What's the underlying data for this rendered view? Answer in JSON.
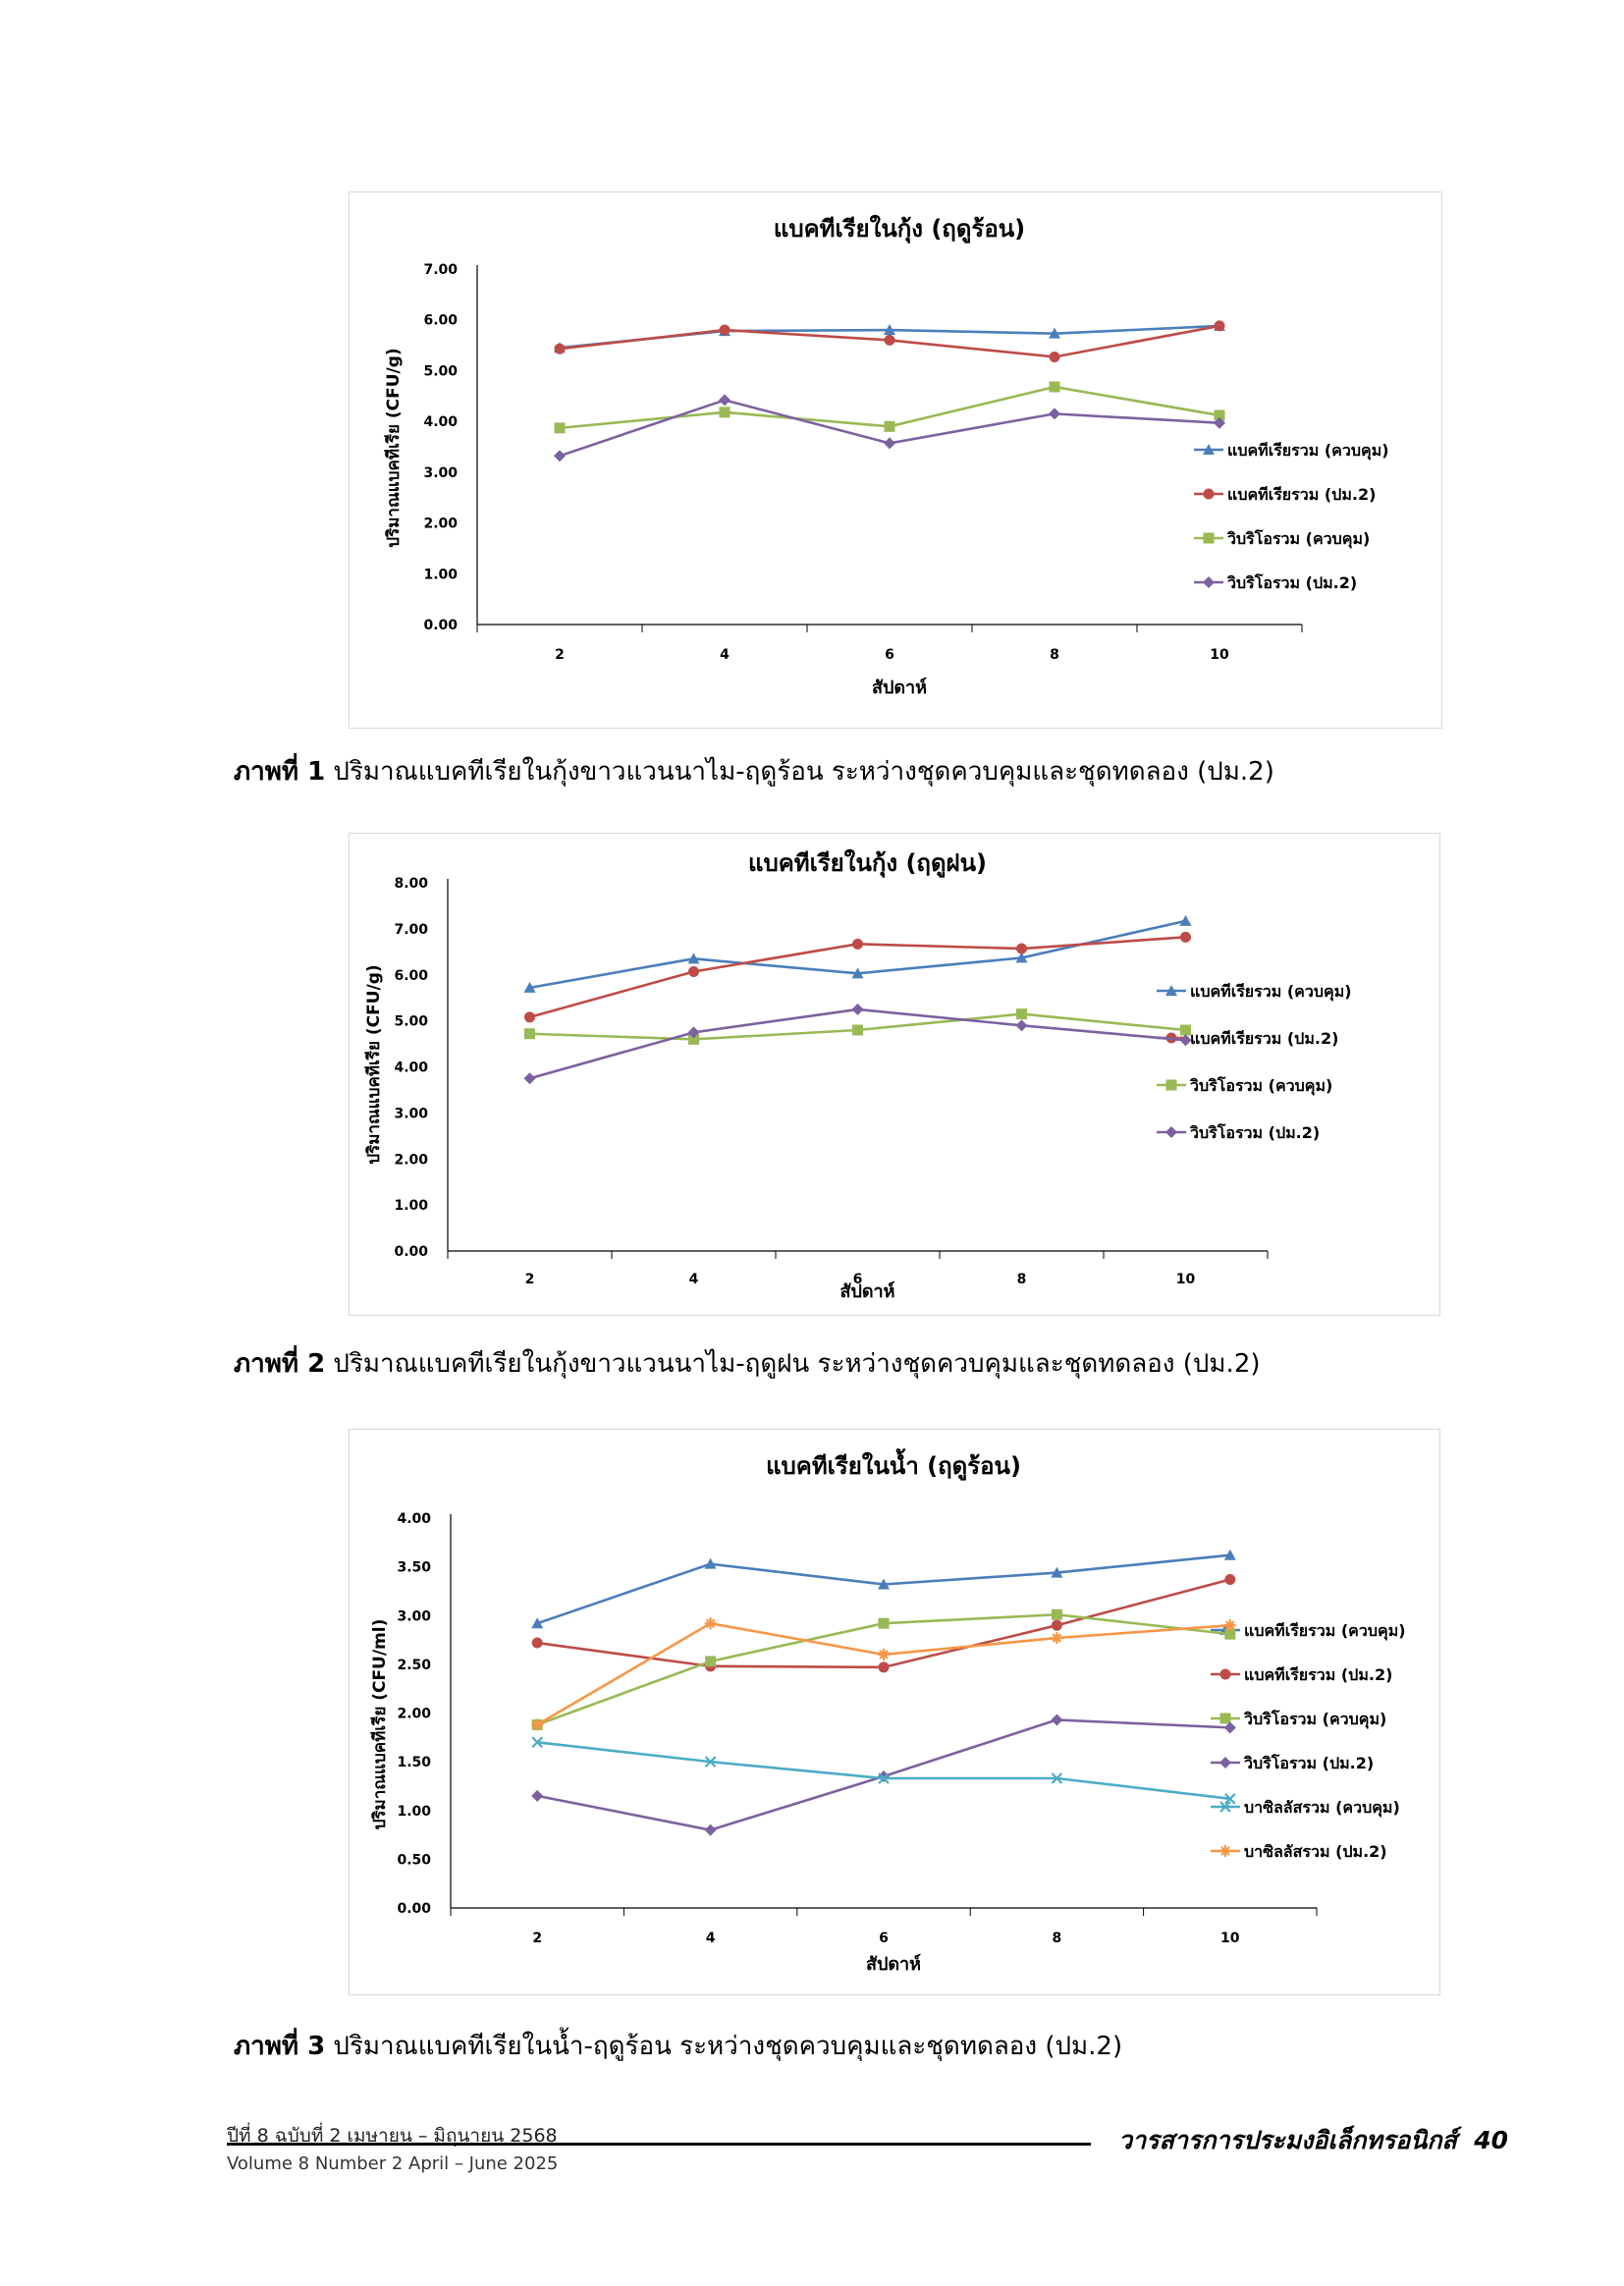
{
  "chart_data": [
    {
      "type": "line",
      "title": "แบคทีเรียในกุ้ง (ฤดูร้อน)",
      "xlabel": "สัปดาห์",
      "ylabel": "ปริมาณแบคทีเรีย (CFU/g)",
      "categories": [
        "2",
        "4",
        "6",
        "8",
        "10"
      ],
      "ylim": [
        0,
        7
      ],
      "yticks": [
        "0.00",
        "1.00",
        "2.00",
        "3.00",
        "4.00",
        "5.00",
        "6.00",
        "7.00"
      ],
      "legend_position": "right",
      "series": [
        {
          "name": "แบคทีเรียรวม (ควบคุม)",
          "color": "#4a7ebb",
          "marker": "triangle",
          "values": [
            5.45,
            5.78,
            5.8,
            5.73,
            5.88
          ]
        },
        {
          "name": "แบคทีเรียรวม (ปม.2)",
          "color": "#be4b48",
          "marker": "circle",
          "values": [
            5.43,
            5.8,
            5.6,
            5.27,
            5.88
          ]
        },
        {
          "name": "วิบริโอรวม (ควบคุม)",
          "color": "#98b954",
          "marker": "square",
          "values": [
            3.87,
            4.18,
            3.9,
            4.68,
            4.12
          ]
        },
        {
          "name": "วิบริโอรวม (ปม.2)",
          "color": "#7d60a0",
          "marker": "diamond",
          "values": [
            3.32,
            4.42,
            3.57,
            4.15,
            3.97
          ]
        }
      ]
    },
    {
      "type": "line",
      "title": "แบคทีเรียในกุ้ง (ฤดูฝน)",
      "xlabel": "สัปดาห์",
      "ylabel": "ปริมาณแบคทีเรีย  (CFU/g)",
      "categories": [
        "2",
        "4",
        "6",
        "8",
        "10"
      ],
      "ylim": [
        0,
        8
      ],
      "yticks": [
        "0.00",
        "1.00",
        "2.00",
        "3.00",
        "4.00",
        "5.00",
        "6.00",
        "7.00",
        "8.00"
      ],
      "legend_position": "right",
      "series": [
        {
          "name": "แบคทีเรียรวม (ควบคุม)",
          "color": "#4a7ebb",
          "marker": "triangle",
          "values": [
            5.72,
            6.35,
            6.03,
            6.37,
            7.17
          ]
        },
        {
          "name": "แบคทีเรียรวม (ปม.2)",
          "color": "#be4b48",
          "marker": "circle",
          "values": [
            5.08,
            6.07,
            6.67,
            6.57,
            6.82
          ]
        },
        {
          "name": "วิบริโอรวม (ควบคุม)",
          "color": "#98b954",
          "marker": "square",
          "values": [
            4.72,
            4.6,
            4.8,
            5.15,
            4.8
          ]
        },
        {
          "name": "วิบริโอรวม (ปม.2)",
          "color": "#7d60a0",
          "marker": "diamond",
          "values": [
            3.75,
            4.75,
            5.25,
            4.9,
            4.58
          ]
        }
      ]
    },
    {
      "type": "line",
      "title": "แบคทีเรียในน้ำ (ฤดูร้อน)",
      "xlabel": "สัปดาห์",
      "ylabel": "ปริมาณแบคทีเรีย  (CFU/ml)",
      "categories": [
        "2",
        "4",
        "6",
        "8",
        "10"
      ],
      "ylim": [
        0,
        4
      ],
      "yticks": [
        "0.00",
        "0.50",
        "1.00",
        "1.50",
        "2.00",
        "2.50",
        "3.00",
        "3.50",
        "4.00"
      ],
      "legend_position": "right",
      "series": [
        {
          "name": "แบคทีเรียรวม (ควบคุม)",
          "color": "#4a7ebb",
          "marker": "triangle",
          "values": [
            2.92,
            3.53,
            3.32,
            3.44,
            3.62
          ]
        },
        {
          "name": "แบคทีเรียรวม (ปม.2)",
          "color": "#be4b48",
          "marker": "circle",
          "values": [
            2.72,
            2.48,
            2.47,
            2.9,
            3.37
          ]
        },
        {
          "name": "วิบริโอรวม (ควบคุม)",
          "color": "#98b954",
          "marker": "square",
          "values": [
            1.88,
            2.53,
            2.92,
            3.01,
            2.81
          ]
        },
        {
          "name": "วิบริโอรวม (ปม.2)",
          "color": "#7d60a0",
          "marker": "diamond",
          "values": [
            1.15,
            0.8,
            1.35,
            1.93,
            1.85
          ]
        },
        {
          "name": "บาซิลลัสรวม (ควบคุม)",
          "color": "#4bacc6",
          "marker": "x",
          "values": [
            1.7,
            1.5,
            1.33,
            1.33,
            1.12
          ]
        },
        {
          "name": "บาซิลลัสรวม (ปม.2)",
          "color": "#f79646",
          "marker": "star",
          "values": [
            1.88,
            2.92,
            2.6,
            2.77,
            2.9
          ]
        }
      ]
    }
  ],
  "captions": [
    {
      "label": "ภาพที่ 1",
      "text": " ปริมาณแบคทีเรียในกุ้งขาวแวนนาไม-ฤดูร้อน ระหว่างชุดควบคุมและชุดทดลอง (ปม.2)"
    },
    {
      "label": "ภาพที่ 2",
      "text": " ปริมาณแบคทีเรียในกุ้งขาวแวนนาไม-ฤดูฝน ระหว่างชุดควบคุมและชุดทดลอง (ปม.2)"
    },
    {
      "label": "ภาพที่ 3",
      "text": " ปริมาณแบคทีเรียในน้ำ-ฤดูร้อน ระหว่างชุดควบคุมและชุดทดลอง (ปม.2)"
    }
  ],
  "footer": {
    "issue_th": "ปีที่ 8 ฉบับที่ 2 เมษายน – มิถุนายน 2568",
    "issue_en": "Volume 8 Number 2 April – June 2025",
    "journal": "วารสารการประมงอิเล็กทรอนิกส์",
    "page_number": "40"
  }
}
